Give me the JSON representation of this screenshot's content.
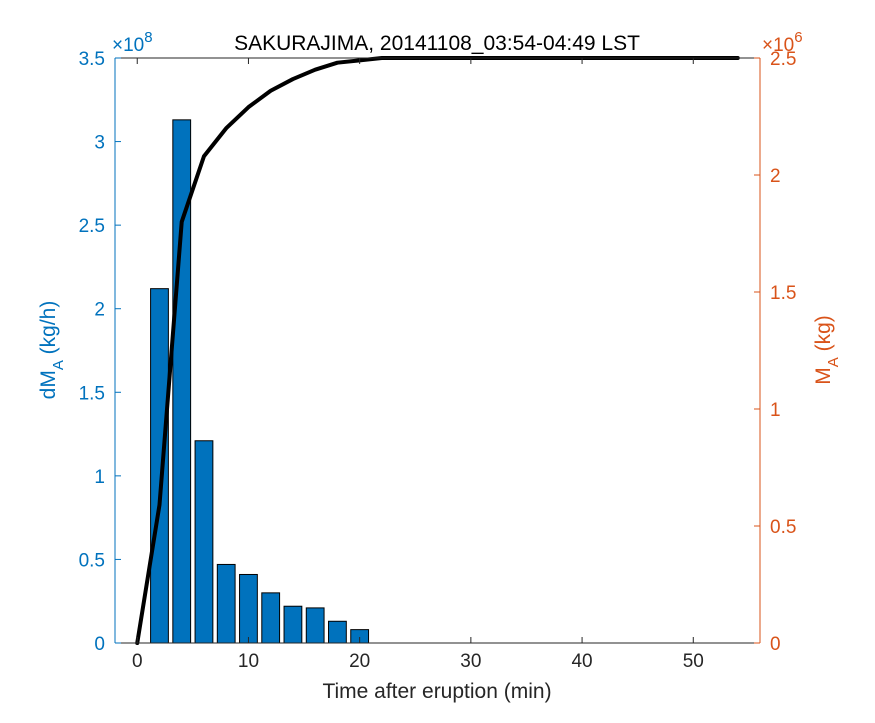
{
  "chart_data": {
    "type": "bar+line",
    "title": "SAKURAJIMA, 20141108_03:54-04:49 LST",
    "xlabel": "Time after eruption (min)",
    "xlim": [
      -2,
      56
    ],
    "xticks": [
      0,
      10,
      20,
      30,
      40,
      50
    ],
    "grid": false,
    "left_axis": {
      "label_main": "dM",
      "label_sub": "A",
      "label_units": " (kg/h)",
      "multiplier": "×10",
      "multiplier_exponent": "8",
      "color": "#0072BD",
      "ylim": [
        0,
        3.5
      ],
      "ticks": [
        0,
        0.5,
        1,
        1.5,
        2,
        2.5,
        3,
        3.5
      ],
      "tick_labels": [
        "0",
        "0.5",
        "1",
        "1.5",
        "2",
        "2.5",
        "3",
        "3.5"
      ]
    },
    "right_axis": {
      "label_main": "M",
      "label_sub": "A",
      "label_units": " (kg)",
      "multiplier": "×10",
      "multiplier_exponent": "6",
      "color": "#D95319",
      "ylim": [
        0,
        2.5
      ],
      "ticks": [
        0,
        0.5,
        1,
        1.5,
        2,
        2.5
      ],
      "tick_labels": [
        "0",
        "0.5",
        "1",
        "1.5",
        "2",
        "2.5"
      ]
    },
    "bars": {
      "axis": "left",
      "color": "#0072BD",
      "x": [
        2,
        4,
        6,
        8,
        10,
        12,
        14,
        16,
        18,
        20
      ],
      "values": [
        2.12,
        3.13,
        1.21,
        0.47,
        0.41,
        0.3,
        0.22,
        0.21,
        0.13,
        0.08
      ]
    },
    "line": {
      "axis": "right",
      "color": "#000000",
      "x": [
        0,
        2,
        4,
        6,
        8,
        10,
        12,
        14,
        16,
        18,
        20,
        22,
        24,
        26,
        28,
        30,
        32,
        34,
        36,
        38,
        40,
        42,
        44,
        46,
        48,
        50,
        52,
        54
      ],
      "values": [
        0,
        0.59,
        1.8,
        2.08,
        2.2,
        2.29,
        2.36,
        2.41,
        2.45,
        2.48,
        2.49,
        2.5,
        2.5,
        2.5,
        2.5,
        2.5,
        2.5,
        2.5,
        2.5,
        2.5,
        2.5,
        2.5,
        2.5,
        2.5,
        2.5,
        2.5,
        2.5,
        2.5
      ]
    }
  }
}
